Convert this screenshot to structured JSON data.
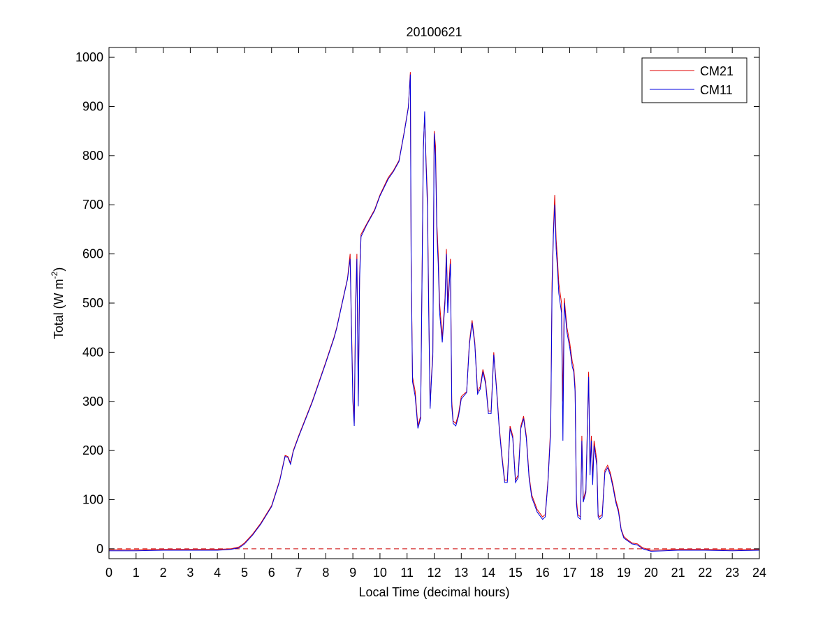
{
  "chart_data": {
    "type": "line",
    "title": "20100621",
    "xlabel": "Local Time (decimal hours)",
    "ylabel_main": "Total (W m",
    "ylabel_sup": "-2",
    "ylabel_close": ")",
    "xlim": [
      0,
      24
    ],
    "ylim": [
      -20,
      1020
    ],
    "xticks": [
      0,
      1,
      2,
      3,
      4,
      5,
      6,
      7,
      8,
      9,
      10,
      11,
      12,
      13,
      14,
      15,
      16,
      17,
      18,
      19,
      20,
      21,
      22,
      23,
      24
    ],
    "yticks": [
      0,
      100,
      200,
      300,
      400,
      500,
      600,
      700,
      800,
      900,
      1000
    ],
    "grid": false,
    "legend_position": "top-right",
    "reference_line": {
      "y": 0,
      "style": "dashed",
      "color": "#cc0000"
    },
    "colors": {
      "CM21": "#e00000",
      "CM11": "#0000e0"
    },
    "series": [
      {
        "name": "CM21",
        "color": "#e00000",
        "points": [
          [
            0,
            -2
          ],
          [
            1,
            -2
          ],
          [
            2,
            -1
          ],
          [
            3,
            -1
          ],
          [
            4,
            -1
          ],
          [
            4.5,
            0
          ],
          [
            4.8,
            4
          ],
          [
            5,
            12
          ],
          [
            5.3,
            30
          ],
          [
            5.6,
            52
          ],
          [
            6,
            88
          ],
          [
            6.3,
            140
          ],
          [
            6.5,
            190
          ],
          [
            6.6,
            188
          ],
          [
            6.7,
            175
          ],
          [
            6.8,
            200
          ],
          [
            7,
            230
          ],
          [
            7.5,
            300
          ],
          [
            8,
            380
          ],
          [
            8.3,
            430
          ],
          [
            8.4,
            450
          ],
          [
            8.6,
            500
          ],
          [
            8.8,
            550
          ],
          [
            8.9,
            600
          ],
          [
            8.95,
            450
          ],
          [
            9.0,
            320
          ],
          [
            9.05,
            255
          ],
          [
            9.1,
            500
          ],
          [
            9.15,
            600
          ],
          [
            9.2,
            300
          ],
          [
            9.25,
            560
          ],
          [
            9.3,
            640
          ],
          [
            9.5,
            660
          ],
          [
            9.8,
            690
          ],
          [
            10,
            720
          ],
          [
            10.3,
            755
          ],
          [
            10.5,
            770
          ],
          [
            10.7,
            790
          ],
          [
            10.9,
            850
          ],
          [
            11.05,
            900
          ],
          [
            11.12,
            970
          ],
          [
            11.15,
            600
          ],
          [
            11.2,
            350
          ],
          [
            11.3,
            320
          ],
          [
            11.4,
            250
          ],
          [
            11.5,
            270
          ],
          [
            11.6,
            820
          ],
          [
            11.65,
            880
          ],
          [
            11.7,
            790
          ],
          [
            11.75,
            720
          ],
          [
            11.8,
            500
          ],
          [
            11.85,
            290
          ],
          [
            11.9,
            350
          ],
          [
            11.95,
            400
          ],
          [
            12.0,
            850
          ],
          [
            12.05,
            820
          ],
          [
            12.1,
            660
          ],
          [
            12.15,
            600
          ],
          [
            12.2,
            500
          ],
          [
            12.3,
            430
          ],
          [
            12.4,
            510
          ],
          [
            12.45,
            610
          ],
          [
            12.5,
            500
          ],
          [
            12.6,
            590
          ],
          [
            12.65,
            300
          ],
          [
            12.7,
            260
          ],
          [
            12.8,
            255
          ],
          [
            12.9,
            275
          ],
          [
            13.0,
            310
          ],
          [
            13.2,
            320
          ],
          [
            13.3,
            420
          ],
          [
            13.4,
            465
          ],
          [
            13.5,
            420
          ],
          [
            13.6,
            320
          ],
          [
            13.7,
            330
          ],
          [
            13.8,
            365
          ],
          [
            13.9,
            340
          ],
          [
            14.0,
            280
          ],
          [
            14.1,
            280
          ],
          [
            14.2,
            400
          ],
          [
            14.3,
            330
          ],
          [
            14.4,
            250
          ],
          [
            14.5,
            190
          ],
          [
            14.6,
            140
          ],
          [
            14.7,
            140
          ],
          [
            14.8,
            250
          ],
          [
            14.9,
            230
          ],
          [
            15.0,
            140
          ],
          [
            15.1,
            150
          ],
          [
            15.2,
            250
          ],
          [
            15.3,
            270
          ],
          [
            15.4,
            230
          ],
          [
            15.5,
            150
          ],
          [
            15.6,
            110
          ],
          [
            15.8,
            80
          ],
          [
            16.0,
            65
          ],
          [
            16.1,
            70
          ],
          [
            16.2,
            140
          ],
          [
            16.3,
            250
          ],
          [
            16.35,
            540
          ],
          [
            16.4,
            650
          ],
          [
            16.45,
            720
          ],
          [
            16.5,
            630
          ],
          [
            16.55,
            590
          ],
          [
            16.6,
            540
          ],
          [
            16.7,
            500
          ],
          [
            16.75,
            300
          ],
          [
            16.8,
            510
          ],
          [
            16.9,
            450
          ],
          [
            17.0,
            420
          ],
          [
            17.1,
            380
          ],
          [
            17.15,
            370
          ],
          [
            17.2,
            330
          ],
          [
            17.25,
            100
          ],
          [
            17.3,
            70
          ],
          [
            17.4,
            65
          ],
          [
            17.45,
            230
          ],
          [
            17.5,
            100
          ],
          [
            17.6,
            120
          ],
          [
            17.7,
            360
          ],
          [
            17.75,
            160
          ],
          [
            17.8,
            230
          ],
          [
            17.85,
            140
          ],
          [
            17.9,
            220
          ],
          [
            18.0,
            180
          ],
          [
            18.05,
            70
          ],
          [
            18.1,
            65
          ],
          [
            18.2,
            70
          ],
          [
            18.3,
            160
          ],
          [
            18.4,
            170
          ],
          [
            18.5,
            155
          ],
          [
            18.6,
            130
          ],
          [
            18.7,
            100
          ],
          [
            18.8,
            80
          ],
          [
            18.9,
            40
          ],
          [
            19.0,
            25
          ],
          [
            19.1,
            20
          ],
          [
            19.3,
            12
          ],
          [
            19.5,
            10
          ],
          [
            19.7,
            2
          ],
          [
            20,
            -3
          ],
          [
            20.5,
            -2
          ],
          [
            21,
            -1
          ],
          [
            22,
            -1
          ],
          [
            23,
            -2
          ],
          [
            24,
            -1
          ]
        ]
      },
      {
        "name": "CM11",
        "color": "#0000e0",
        "points": [
          [
            0,
            -4
          ],
          [
            1,
            -4
          ],
          [
            2,
            -3
          ],
          [
            3,
            -3
          ],
          [
            4,
            -3
          ],
          [
            4.5,
            -1
          ],
          [
            4.8,
            2
          ],
          [
            5,
            10
          ],
          [
            5.3,
            28
          ],
          [
            5.6,
            50
          ],
          [
            6,
            86
          ],
          [
            6.3,
            138
          ],
          [
            6.5,
            188
          ],
          [
            6.6,
            186
          ],
          [
            6.7,
            172
          ],
          [
            6.8,
            198
          ],
          [
            7,
            228
          ],
          [
            7.5,
            298
          ],
          [
            8,
            378
          ],
          [
            8.3,
            428
          ],
          [
            8.4,
            448
          ],
          [
            8.6,
            498
          ],
          [
            8.8,
            548
          ],
          [
            8.9,
            590
          ],
          [
            8.95,
            440
          ],
          [
            9.0,
            300
          ],
          [
            9.05,
            250
          ],
          [
            9.1,
            480
          ],
          [
            9.15,
            590
          ],
          [
            9.2,
            290
          ],
          [
            9.25,
            550
          ],
          [
            9.3,
            635
          ],
          [
            9.5,
            658
          ],
          [
            9.8,
            688
          ],
          [
            10,
            718
          ],
          [
            10.3,
            752
          ],
          [
            10.5,
            768
          ],
          [
            10.7,
            788
          ],
          [
            10.9,
            848
          ],
          [
            11.05,
            898
          ],
          [
            11.12,
            965
          ],
          [
            11.15,
            590
          ],
          [
            11.2,
            340
          ],
          [
            11.3,
            310
          ],
          [
            11.4,
            245
          ],
          [
            11.5,
            265
          ],
          [
            11.6,
            810
          ],
          [
            11.65,
            890
          ],
          [
            11.7,
            780
          ],
          [
            11.75,
            700
          ],
          [
            11.8,
            480
          ],
          [
            11.85,
            285
          ],
          [
            11.9,
            345
          ],
          [
            11.95,
            390
          ],
          [
            12.0,
            845
          ],
          [
            12.05,
            800
          ],
          [
            12.1,
            640
          ],
          [
            12.15,
            580
          ],
          [
            12.2,
            480
          ],
          [
            12.3,
            420
          ],
          [
            12.4,
            500
          ],
          [
            12.45,
            600
          ],
          [
            12.5,
            480
          ],
          [
            12.6,
            580
          ],
          [
            12.65,
            290
          ],
          [
            12.7,
            255
          ],
          [
            12.8,
            250
          ],
          [
            12.9,
            270
          ],
          [
            13.0,
            305
          ],
          [
            13.2,
            318
          ],
          [
            13.3,
            415
          ],
          [
            13.4,
            460
          ],
          [
            13.5,
            415
          ],
          [
            13.6,
            315
          ],
          [
            13.7,
            325
          ],
          [
            13.8,
            360
          ],
          [
            13.9,
            335
          ],
          [
            14.0,
            275
          ],
          [
            14.1,
            275
          ],
          [
            14.2,
            395
          ],
          [
            14.3,
            325
          ],
          [
            14.4,
            245
          ],
          [
            14.5,
            185
          ],
          [
            14.6,
            135
          ],
          [
            14.7,
            135
          ],
          [
            14.8,
            245
          ],
          [
            14.9,
            225
          ],
          [
            15.0,
            135
          ],
          [
            15.1,
            145
          ],
          [
            15.2,
            245
          ],
          [
            15.3,
            265
          ],
          [
            15.4,
            225
          ],
          [
            15.5,
            145
          ],
          [
            15.6,
            105
          ],
          [
            15.8,
            75
          ],
          [
            16.0,
            60
          ],
          [
            16.1,
            65
          ],
          [
            16.2,
            135
          ],
          [
            16.3,
            240
          ],
          [
            16.35,
            520
          ],
          [
            16.4,
            640
          ],
          [
            16.45,
            700
          ],
          [
            16.5,
            610
          ],
          [
            16.55,
            570
          ],
          [
            16.6,
            520
          ],
          [
            16.7,
            480
          ],
          [
            16.75,
            220
          ],
          [
            16.8,
            500
          ],
          [
            16.9,
            440
          ],
          [
            17.0,
            410
          ],
          [
            17.1,
            370
          ],
          [
            17.15,
            360
          ],
          [
            17.2,
            320
          ],
          [
            17.25,
            90
          ],
          [
            17.3,
            65
          ],
          [
            17.4,
            60
          ],
          [
            17.45,
            220
          ],
          [
            17.5,
            95
          ],
          [
            17.6,
            115
          ],
          [
            17.7,
            350
          ],
          [
            17.75,
            150
          ],
          [
            17.8,
            220
          ],
          [
            17.85,
            130
          ],
          [
            17.9,
            210
          ],
          [
            18.0,
            170
          ],
          [
            18.05,
            65
          ],
          [
            18.1,
            60
          ],
          [
            18.2,
            65
          ],
          [
            18.3,
            155
          ],
          [
            18.4,
            165
          ],
          [
            18.5,
            150
          ],
          [
            18.6,
            125
          ],
          [
            18.7,
            95
          ],
          [
            18.8,
            75
          ],
          [
            18.9,
            38
          ],
          [
            19.0,
            22
          ],
          [
            19.1,
            18
          ],
          [
            19.3,
            10
          ],
          [
            19.5,
            8
          ],
          [
            19.7,
            0
          ],
          [
            20,
            -5
          ],
          [
            20.5,
            -4
          ],
          [
            21,
            -3
          ],
          [
            22,
            -3
          ],
          [
            23,
            -4
          ],
          [
            24,
            -3
          ]
        ]
      }
    ]
  }
}
